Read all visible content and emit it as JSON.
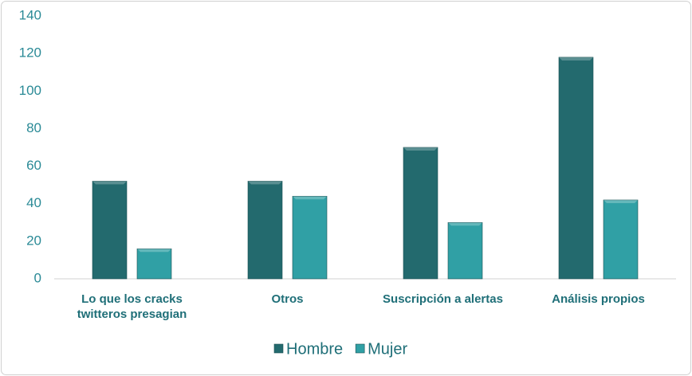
{
  "chart_data": {
    "type": "bar",
    "categories": [
      "Lo que los cracks twitteros presagian",
      "Otros",
      "Suscripción a alertas",
      "Análisis propios"
    ],
    "series": [
      {
        "name": "Hombre",
        "color": "#236a6e",
        "values": [
          52,
          52,
          70,
          118
        ]
      },
      {
        "name": "Mujer",
        "color": "#30a0a5",
        "values": [
          16,
          44,
          30,
          42
        ]
      }
    ],
    "ylim": [
      0,
      140
    ],
    "yticks": [
      0,
      20,
      40,
      60,
      80,
      100,
      120,
      140
    ],
    "grid": false,
    "legend": "bottom"
  }
}
